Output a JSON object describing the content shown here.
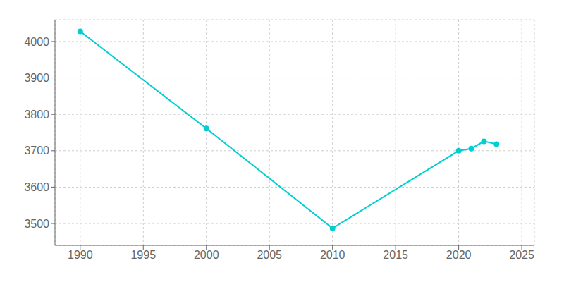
{
  "chart_data": {
    "type": "line",
    "x": [
      1990,
      2000,
      2010,
      2020,
      2021,
      2022,
      2023
    ],
    "values": [
      4028,
      3761,
      3487,
      3700,
      3706,
      3726,
      3718
    ],
    "color": "#00CED1",
    "marker": "circle",
    "xlim": [
      1988,
      2026
    ],
    "xticks": [
      1990,
      1995,
      2000,
      2005,
      2010,
      2015,
      2020,
      2025
    ],
    "ylim": [
      3440,
      4060
    ],
    "yticks": [
      3500,
      3600,
      3700,
      3800,
      3900,
      4000
    ],
    "grid": true
  }
}
